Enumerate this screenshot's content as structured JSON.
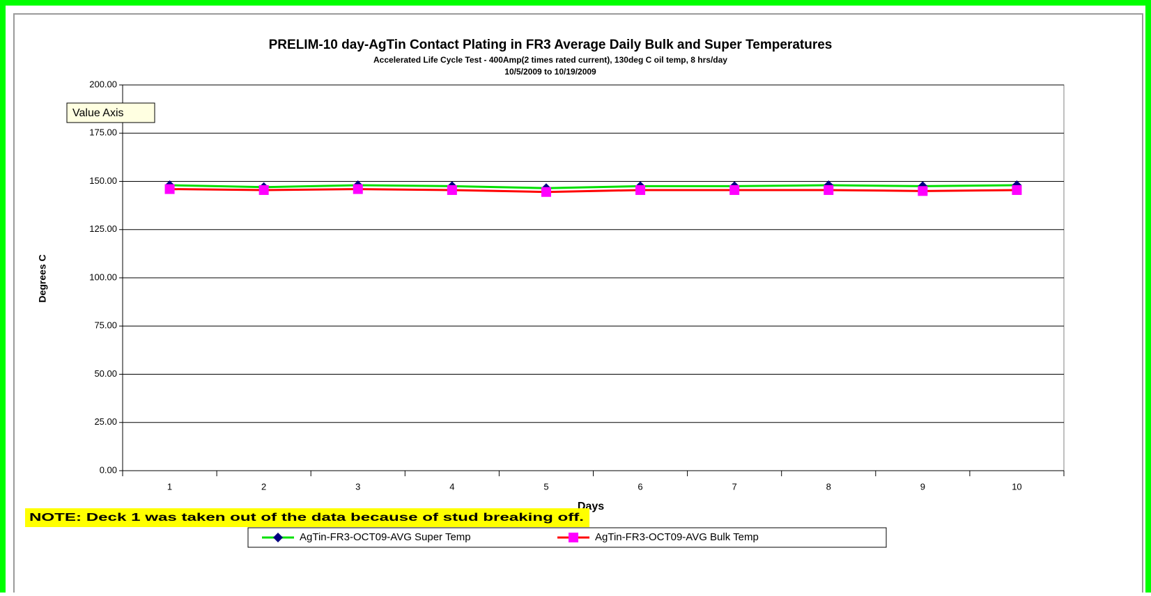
{
  "chart_data": {
    "type": "line",
    "title": "PRELIM-10 day-AgTin Contact Plating in FR3 Average Daily Bulk and Super Temperatures",
    "subtitle": "Accelerated Life Cycle Test - 400Amp(2 times rated current), 130deg C oil temp, 8 hrs/day",
    "date_range": "10/5/2009 to 10/19/2009",
    "x_label": "Days",
    "y_label": "Degrees C",
    "categories": [
      "1",
      "2",
      "3",
      "4",
      "5",
      "6",
      "7",
      "8",
      "9",
      "10"
    ],
    "series": [
      {
        "name": "AgTin-FR3-OCT09-AVG Super Temp",
        "color": "#00e000",
        "marker_color": "#000080",
        "marker": "diamond",
        "values": [
          148,
          147,
          148,
          147.5,
          146.5,
          147.5,
          147.5,
          148,
          147.5,
          148
        ]
      },
      {
        "name": "AgTin-FR3-OCT09-AVG Bulk Temp",
        "color": "#ff0000",
        "marker_color": "#ff00ff",
        "marker": "square",
        "values": [
          146,
          145.5,
          146,
          145.5,
          144.5,
          145.5,
          145.5,
          145.5,
          145,
          145.5
        ]
      }
    ],
    "ylim": [
      0,
      200
    ],
    "yticks": [
      {
        "value": 0,
        "label": "0.00"
      },
      {
        "value": 25,
        "label": "25.00"
      },
      {
        "value": 50,
        "label": "50.00"
      },
      {
        "value": 75,
        "label": "75.00"
      },
      {
        "value": 100,
        "label": "100.00"
      },
      {
        "value": 125,
        "label": "125.00"
      },
      {
        "value": 150,
        "label": "150.00"
      },
      {
        "value": 175,
        "label": "175.00"
      },
      {
        "value": 200,
        "label": "200.00"
      }
    ],
    "grid": true,
    "legend": "bottom",
    "tooltip": "Value Axis",
    "note": "NOTE:  Deck 1 was taken out of the data because of stud breaking off."
  }
}
